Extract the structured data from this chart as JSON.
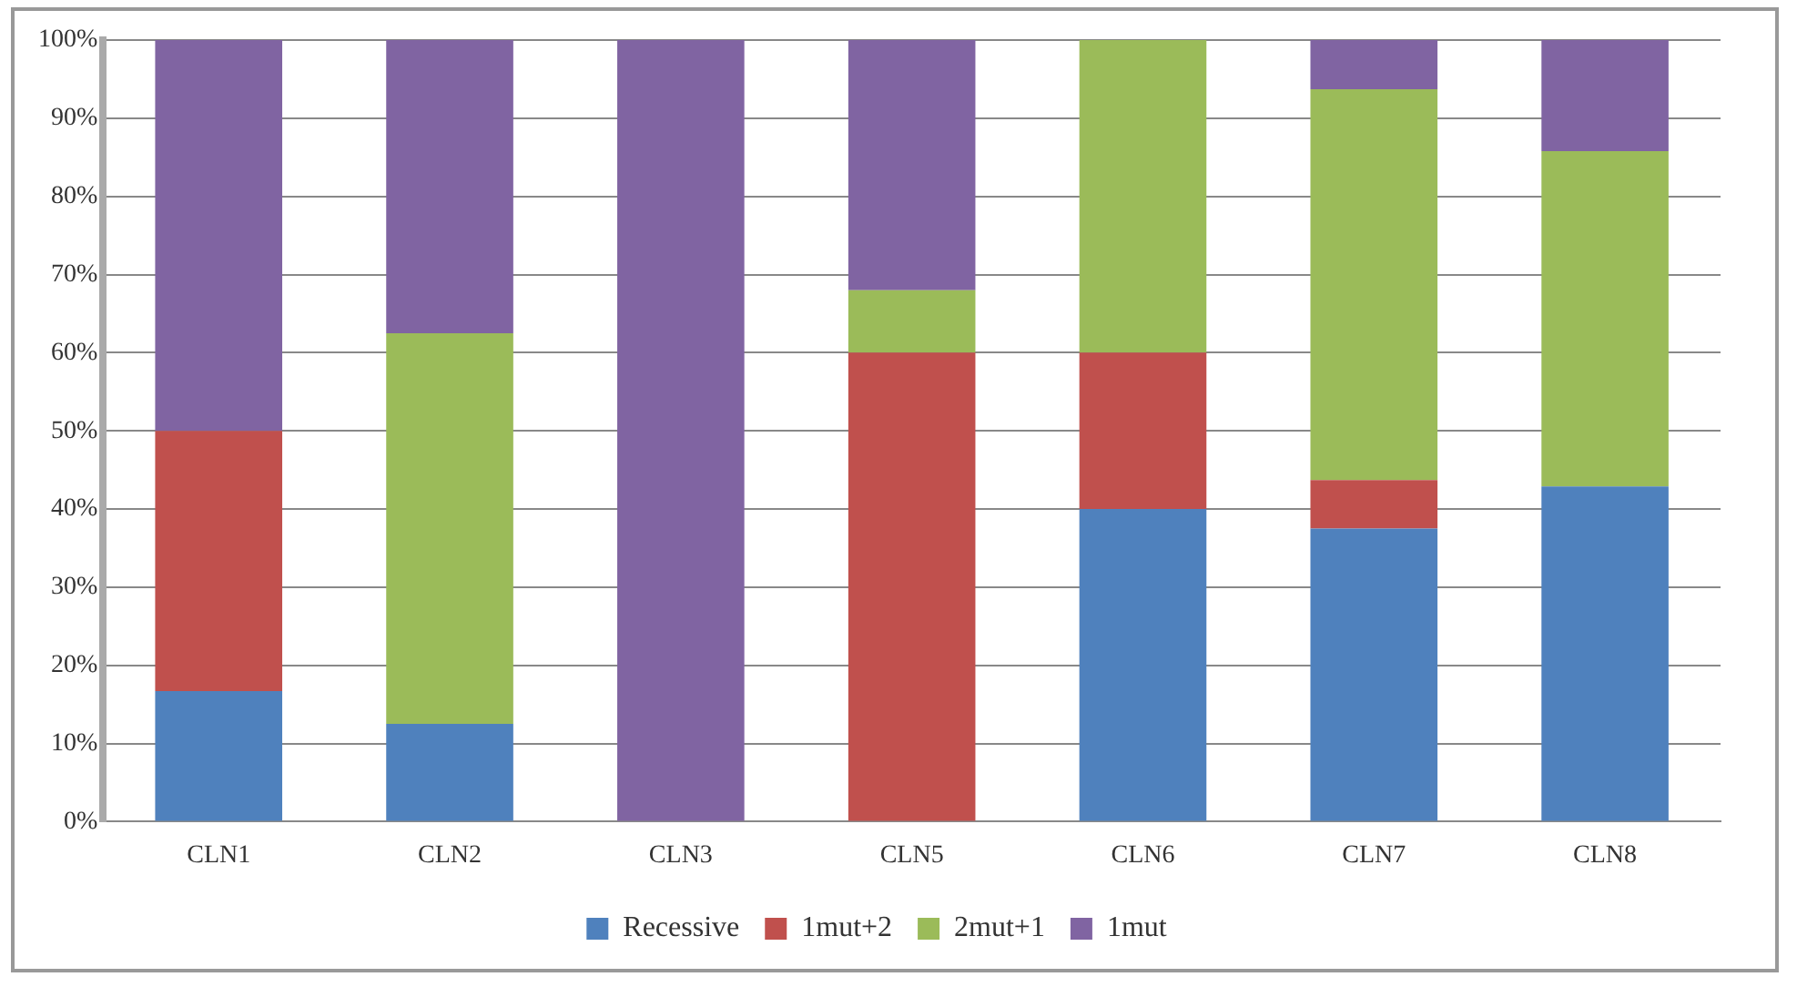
{
  "chart_data": {
    "type": "bar",
    "stacked": true,
    "categories": [
      "CLN1",
      "CLN2",
      "CLN3",
      "CLN5",
      "CLN6",
      "CLN7",
      "CLN8"
    ],
    "series": [
      {
        "name": "Recessive",
        "color": "#4f81bd",
        "values": [
          16.7,
          12.5,
          0,
          0,
          40,
          37.5,
          42.9
        ]
      },
      {
        "name": "1mut+2",
        "color": "#c0504d",
        "values": [
          33.3,
          0,
          0,
          60,
          20,
          6.2,
          0
        ]
      },
      {
        "name": "2mut+1",
        "color": "#9bbb59",
        "values": [
          0,
          50,
          0,
          8,
          40,
          50,
          42.9
        ]
      },
      {
        "name": "1mut",
        "color": "#8064a2",
        "values": [
          50,
          37.5,
          100,
          32,
          0,
          6.3,
          14.2
        ]
      }
    ],
    "ylim": [
      0,
      100
    ],
    "yticks": [
      {
        "value": 0,
        "label": "0%"
      },
      {
        "value": 10,
        "label": "10%"
      },
      {
        "value": 20,
        "label": "20%"
      },
      {
        "value": 30,
        "label": "30%"
      },
      {
        "value": 40,
        "label": "40%"
      },
      {
        "value": 50,
        "label": "50%"
      },
      {
        "value": 60,
        "label": "60%"
      },
      {
        "value": 70,
        "label": "70%"
      },
      {
        "value": 80,
        "label": "80%"
      },
      {
        "value": 90,
        "label": "90%"
      },
      {
        "value": 100,
        "label": "100%"
      }
    ],
    "grid": "y",
    "legend": "bottom"
  }
}
